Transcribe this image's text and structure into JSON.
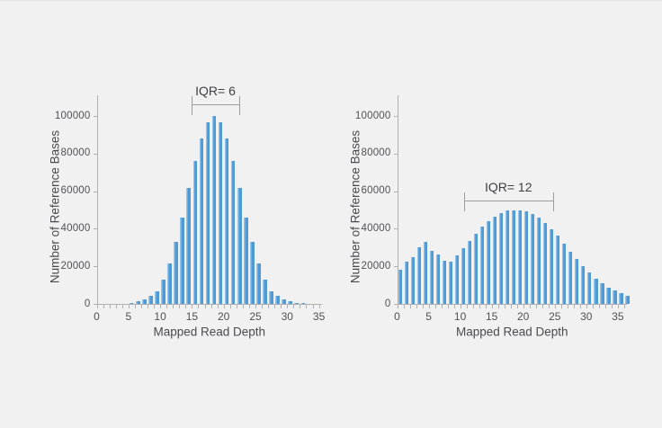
{
  "figure": {
    "background_color": "#f1f1f2",
    "bar_color": "#4f99d4",
    "bar_highlight_color": "#93c4ea",
    "axis_color": "#b0b0b3",
    "text_color": "#4a4a4d"
  },
  "chart_data": [
    {
      "type": "bar",
      "title": "",
      "xlabel": "Mapped Read Depth",
      "ylabel": "Number of Reference Bases",
      "xlim": [
        0,
        35.5
      ],
      "ylim": [
        0,
        111000
      ],
      "yticks": [
        0,
        20000,
        40000,
        60000,
        80000,
        100000
      ],
      "xticks": [
        0,
        5,
        10,
        15,
        20,
        25,
        30,
        35
      ],
      "grid": false,
      "legend": null,
      "annotation": {
        "label": "IQR= 6",
        "x_from": 14.9,
        "x_to": 22.5,
        "y_value": 106200
      },
      "x": [
        5,
        6,
        7,
        8,
        9,
        10,
        11,
        12,
        13,
        14,
        15,
        16,
        17,
        18,
        19,
        20,
        21,
        22,
        23,
        24,
        25,
        26,
        27,
        28,
        29,
        30,
        31,
        32
      ],
      "values": [
        400,
        1400,
        2600,
        4200,
        6800,
        13000,
        21500,
        33000,
        46000,
        61500,
        76000,
        88000,
        96500,
        100000,
        96500,
        88000,
        76000,
        61500,
        46000,
        33000,
        21500,
        13000,
        6800,
        4200,
        2600,
        1400,
        700,
        300
      ]
    },
    {
      "type": "bar",
      "title": "",
      "xlabel": "Mapped Read Depth",
      "ylabel": "Number of Reference Bases",
      "xlim": [
        0,
        36.5
      ],
      "ylim": [
        0,
        111000
      ],
      "yticks": [
        0,
        20000,
        40000,
        60000,
        80000,
        100000
      ],
      "xticks": [
        0,
        5,
        10,
        15,
        20,
        25,
        30,
        35
      ],
      "grid": false,
      "legend": null,
      "annotation": {
        "label": "IQR= 12",
        "x_from": 10.6,
        "x_to": 24.7,
        "y_value": 54800
      },
      "x": [
        0,
        1,
        2,
        3,
        4,
        5,
        6,
        7,
        8,
        9,
        10,
        11,
        12,
        13,
        14,
        15,
        16,
        17,
        18,
        19,
        20,
        21,
        22,
        23,
        24,
        25,
        26,
        27,
        28,
        29,
        30,
        31,
        32,
        33,
        34,
        35,
        36
      ],
      "values": [
        18000,
        22300,
        25000,
        30300,
        33000,
        28200,
        26300,
        23000,
        22700,
        26000,
        29800,
        33600,
        37300,
        41000,
        44100,
        46300,
        48400,
        49600,
        50000,
        50000,
        49400,
        48000,
        45800,
        43000,
        39800,
        36200,
        32000,
        27800,
        23800,
        20000,
        16600,
        13600,
        11000,
        8800,
        7000,
        5600,
        4500
      ]
    }
  ]
}
